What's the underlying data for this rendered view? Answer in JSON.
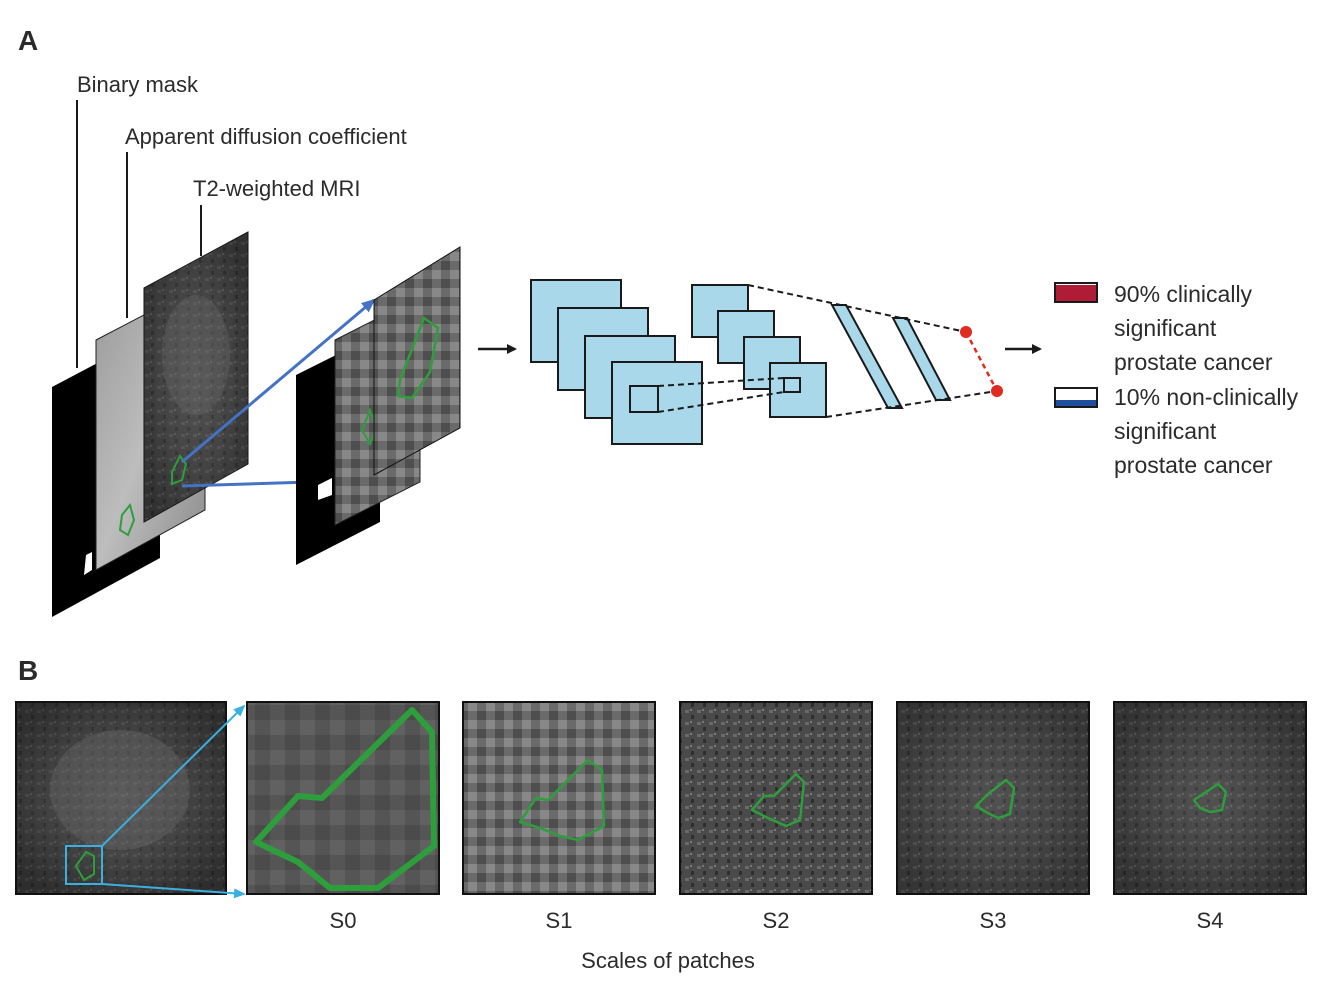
{
  "panel_a": {
    "letter": "A",
    "input_labels": [
      "Binary mask",
      "Apparent diffusion coefficient",
      "T2-weighted MRI"
    ],
    "legend": [
      {
        "lines": [
          "90% clinically",
          "significant",
          "prostate cancer"
        ],
        "color": "#b01c36",
        "fill_fraction": 0.9
      },
      {
        "lines": [
          "10% non-clinically",
          "significant",
          "prostate cancer"
        ],
        "color": "#1f4e9c",
        "fill_fraction": 0.1
      }
    ]
  },
  "panel_b": {
    "letter": "B",
    "scales": [
      "S0",
      "S1",
      "S2",
      "S3",
      "S4"
    ],
    "caption": "Scales of patches"
  },
  "colors": {
    "layer_fill": "#a8d8ea",
    "arrow_blue": "#4472c4",
    "zoom_cyan": "#3ab0e0",
    "contour_green": "#2e9e3c",
    "output_dot": "#e02b20"
  }
}
